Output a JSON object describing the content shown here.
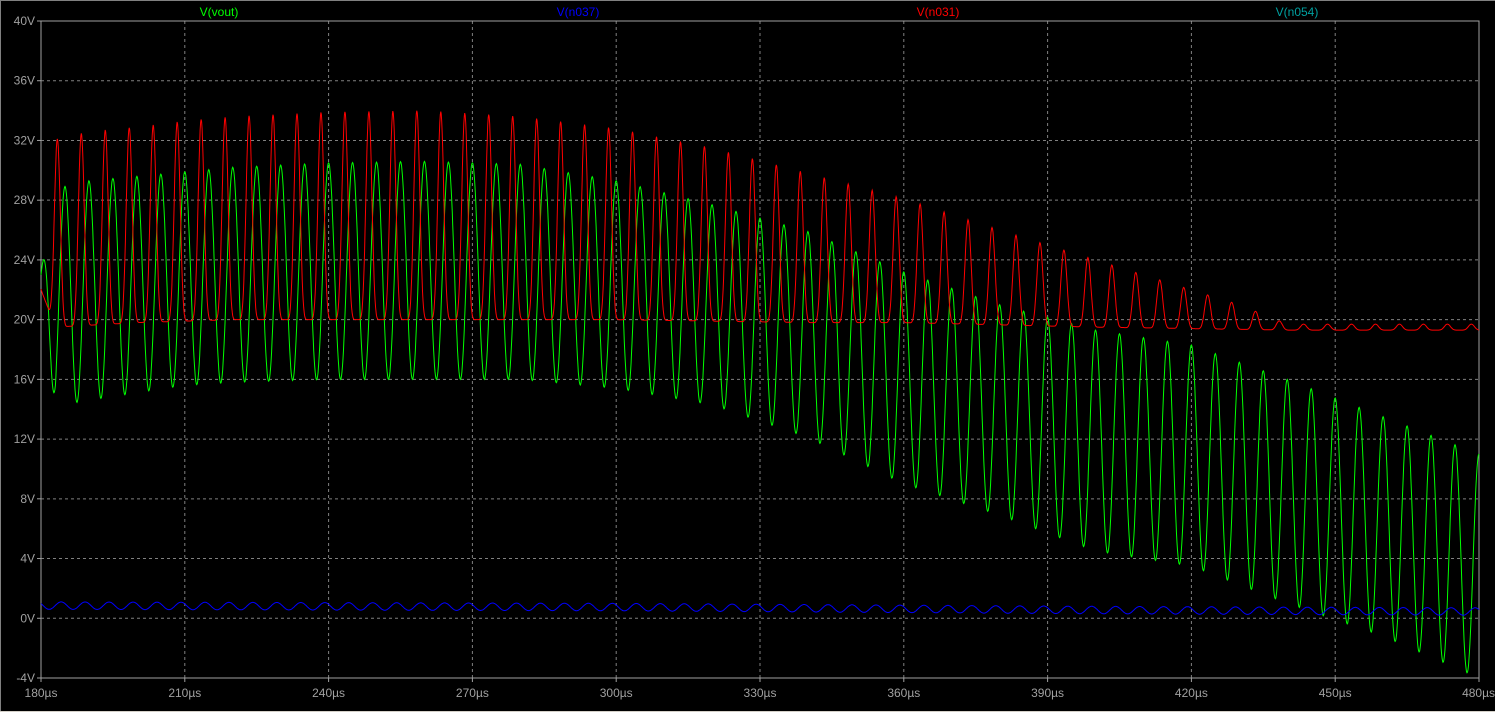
{
  "chart_data": {
    "type": "line",
    "xlabel": "",
    "ylabel": "",
    "xlim": [
      180,
      480
    ],
    "ylim": [
      -4,
      40
    ],
    "x_ticks": [
      "180µs",
      "210µs",
      "240µs",
      "270µs",
      "300µs",
      "330µs",
      "360µs",
      "390µs",
      "420µs",
      "450µs",
      "480µs"
    ],
    "y_ticks": [
      "-4V",
      "0V",
      "4V",
      "8V",
      "12V",
      "16V",
      "20V",
      "24V",
      "28V",
      "32V",
      "36V",
      "40V"
    ],
    "grid": true,
    "legend_position": "top",
    "colors": {
      "background": "#000000",
      "grid": "#808080",
      "axis": "#a0a0a0"
    },
    "series": [
      {
        "name": "V(vout)",
        "color": "#00ff00",
        "period_us": 5.0,
        "max_envelope": {
          "x": [
            180,
            182,
            190,
            200,
            210,
            220,
            240,
            260,
            280,
            300,
            320,
            340,
            360,
            380,
            400,
            420,
            440,
            460,
            480
          ],
          "y": [
            23,
            28.7,
            29.3,
            29.6,
            29.9,
            30.2,
            30.5,
            30.6,
            30.4,
            29.3,
            27.7,
            25.9,
            23.2,
            21.0,
            19.3,
            18.3,
            16.0,
            13.5,
            11.0
          ]
        },
        "min_envelope": {
          "x": [
            180,
            183,
            190,
            200,
            210,
            220,
            240,
            260,
            280,
            300,
            320,
            340,
            360,
            380,
            400,
            420,
            440,
            460,
            480
          ],
          "y": [
            21,
            14.2,
            14.6,
            15.1,
            15.6,
            15.8,
            16.0,
            16.0,
            16.0,
            15.4,
            14.3,
            12.1,
            9.0,
            6.9,
            4.5,
            3.5,
            1.0,
            -1.2,
            -4.0
          ]
        }
      },
      {
        "name": "V(n037)",
        "color": "#0000ff",
        "period_us": 5.0,
        "max_envelope": {
          "x": [
            180,
            300,
            400,
            480
          ],
          "y": [
            1.1,
            1.0,
            0.8,
            0.7
          ]
        },
        "min_envelope": {
          "x": [
            180,
            300,
            400,
            480
          ],
          "y": [
            0.6,
            0.5,
            0.3,
            0.2
          ]
        }
      },
      {
        "name": "V(n031)",
        "color": "#ff0000",
        "period_us": 5.0,
        "max_envelope": {
          "x": [
            180,
            182,
            190,
            200,
            210,
            220,
            240,
            260,
            280,
            300,
            320,
            340,
            360,
            380,
            400,
            410,
            420,
            430,
            440,
            480
          ],
          "y": [
            24,
            32.0,
            32.6,
            32.9,
            33.3,
            33.6,
            33.9,
            34.0,
            33.6,
            32.8,
            31.5,
            29.8,
            28.1,
            26.0,
            24.0,
            23.0,
            22.0,
            21.0,
            19.7,
            19.7
          ]
        },
        "min_envelope": {
          "x": [
            180,
            183,
            200,
            220,
            260,
            280,
            300,
            340,
            360,
            400,
            420,
            440,
            480
          ],
          "y": [
            22,
            19.5,
            19.8,
            20.0,
            20.0,
            20.0,
            20.0,
            19.8,
            19.8,
            19.5,
            19.4,
            19.3,
            19.3
          ]
        }
      },
      {
        "name": "V(n054)",
        "color": "#00a0a0",
        "values": []
      }
    ]
  }
}
